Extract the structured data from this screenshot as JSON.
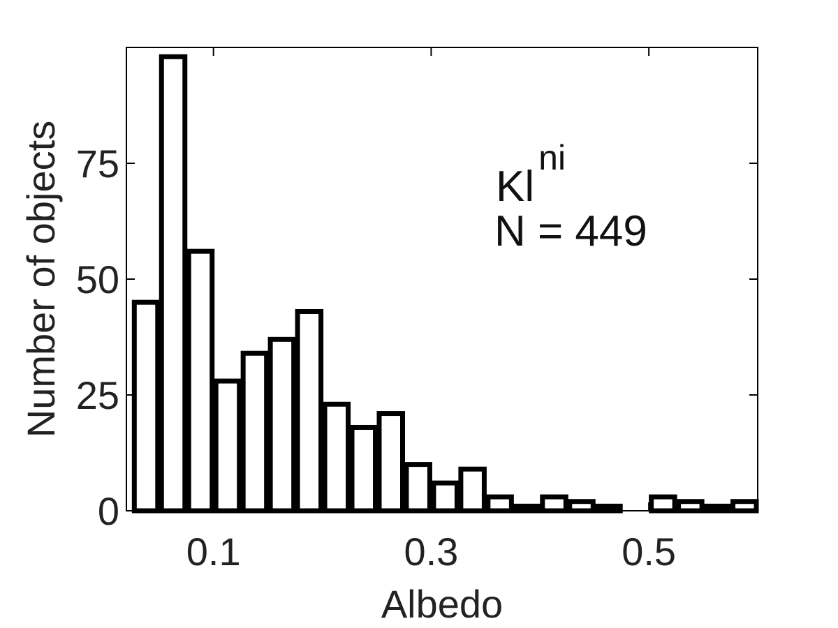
{
  "chart_data": {
    "type": "bar",
    "title": "",
    "xlabel": "Albedo",
    "ylabel": "Number of objects",
    "xlim": [
      0.02,
      0.6
    ],
    "ylim": [
      0,
      100
    ],
    "bar_width": 0.0215,
    "x": [
      0.038,
      0.063,
      0.088,
      0.113,
      0.138,
      0.163,
      0.188,
      0.213,
      0.238,
      0.263,
      0.288,
      0.313,
      0.338,
      0.363,
      0.388,
      0.413,
      0.438,
      0.463,
      0.488,
      0.513,
      0.538,
      0.563,
      0.588
    ],
    "values": [
      45,
      98,
      56,
      28,
      34,
      37,
      43,
      23,
      18,
      21,
      10,
      6,
      9,
      3,
      1,
      3,
      2,
      1,
      0,
      3,
      2,
      1,
      2
    ],
    "x_ticks": [
      0.1,
      0.3,
      0.5
    ],
    "x_tick_labels": [
      "0.1",
      "0.3",
      "0.5"
    ],
    "y_ticks": [
      0,
      25,
      50,
      75
    ],
    "y_tick_labels": [
      "0",
      "25",
      "50",
      "75"
    ],
    "grid": false,
    "annotation": {
      "label": "Kl",
      "superscript": "ni",
      "count_text": "N = 449"
    },
    "colors": {
      "bar_fill": "#ffffff",
      "bar_edge": "#000000",
      "axis": "#000000",
      "text": "#222222"
    }
  }
}
